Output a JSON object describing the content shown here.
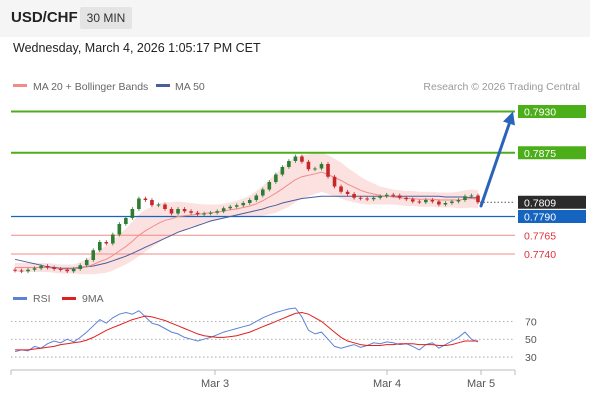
{
  "header": {
    "symbol": "USD/CHF",
    "timeframe": "30 MIN",
    "datetime": "Wednesday, March 4, 2026 1:05:17 PM CET"
  },
  "legend": {
    "ma20_label": "MA 20 + Bollinger Bands",
    "ma50_label": "MA 50",
    "credit": "Research © 2026 Trading Central",
    "rsi_label": "RSI",
    "rsi_ma_label": "9MA"
  },
  "colors": {
    "up_candle": "#2e7d32",
    "down_candle": "#c62828",
    "ma20": "#f28c8c",
    "bollinger_fill": "#fbdcdc",
    "ma50": "#4a5d9c",
    "resistance": "#4caf1a",
    "support": "#f08a8a",
    "pivot": "#1565c0",
    "current_price_tag": "#2b2b2b",
    "arrow": "#2a64b8",
    "rsi": "#5b82d6",
    "rsi_ma": "#e02020"
  },
  "chart_data": [
    {
      "type": "candlestick",
      "title": "USD/CHF",
      "timeframe": "30 MIN",
      "x_tick_labels": [
        "Mar 3",
        "Mar 4",
        "Mar 5"
      ],
      "ylim": [
        0.7708,
        0.7948
      ],
      "price_levels": [
        {
          "value": 0.793,
          "label": "0.7930",
          "kind": "resistance"
        },
        {
          "value": 0.7875,
          "label": "0.7875",
          "kind": "resistance"
        },
        {
          "value": 0.7809,
          "label": "0.7809",
          "kind": "current_price"
        },
        {
          "value": 0.779,
          "label": "0.7790",
          "kind": "pivot"
        },
        {
          "value": 0.7765,
          "label": "0.7765",
          "kind": "support"
        },
        {
          "value": 0.774,
          "label": "0.7740",
          "kind": "support"
        }
      ],
      "projection": {
        "from": 0.7804,
        "to": 0.793,
        "direction": "up"
      },
      "close_path": [
        0.7718,
        0.7717,
        0.7719,
        0.7721,
        0.7724,
        0.7722,
        0.772,
        0.7719,
        0.7717,
        0.772,
        0.7725,
        0.7732,
        0.7745,
        0.7756,
        0.7754,
        0.7766,
        0.778,
        0.7788,
        0.78,
        0.7814,
        0.7812,
        0.7805,
        0.7806,
        0.78,
        0.7794,
        0.78,
        0.7797,
        0.7795,
        0.7793,
        0.7794,
        0.7795,
        0.7797,
        0.7801,
        0.7803,
        0.7805,
        0.7808,
        0.7812,
        0.7818,
        0.7826,
        0.7836,
        0.7846,
        0.7856,
        0.7864,
        0.787,
        0.7863,
        0.7853,
        0.7854,
        0.786,
        0.7843,
        0.783,
        0.7823,
        0.782,
        0.7815,
        0.7814,
        0.7813,
        0.7815,
        0.7817,
        0.7819,
        0.7818,
        0.7815,
        0.7813,
        0.781,
        0.7809,
        0.7812,
        0.781,
        0.7806,
        0.7808,
        0.781,
        0.7812,
        0.7817,
        0.7818,
        0.7809
      ],
      "ma20_path": [
        0.7722,
        0.7722,
        0.7722,
        0.7722,
        0.7722,
        0.7722,
        0.7721,
        0.772,
        0.772,
        0.772,
        0.7721,
        0.7723,
        0.7726,
        0.773,
        0.7733,
        0.7738,
        0.7744,
        0.775,
        0.7757,
        0.7765,
        0.7771,
        0.7776,
        0.7781,
        0.7785,
        0.7787,
        0.779,
        0.7791,
        0.7792,
        0.7793,
        0.7794,
        0.7795,
        0.7796,
        0.7797,
        0.7799,
        0.78,
        0.7802,
        0.7804,
        0.7807,
        0.7811,
        0.7816,
        0.7821,
        0.7827,
        0.7833,
        0.7839,
        0.7843,
        0.7845,
        0.7847,
        0.7849,
        0.7846,
        0.7842,
        0.7838,
        0.7833,
        0.7829,
        0.7825,
        0.7822,
        0.782,
        0.7818,
        0.7817,
        0.7816,
        0.7815,
        0.7814,
        0.7814,
        0.7813,
        0.7813,
        0.7813,
        0.7812,
        0.7812,
        0.7812,
        0.7812,
        0.7813,
        0.7814,
        0.7813
      ],
      "ma50_path": [
        0.7733,
        0.7731,
        0.7729,
        0.7727,
        0.7725,
        0.7723,
        0.7722,
        0.7721,
        0.7721,
        0.7721,
        0.7722,
        0.7723,
        0.7724,
        0.7726,
        0.7728,
        0.7731,
        0.7734,
        0.7737,
        0.7741,
        0.7745,
        0.7749,
        0.7753,
        0.7757,
        0.7761,
        0.7765,
        0.7769,
        0.7772,
        0.7775,
        0.7778,
        0.7781,
        0.7784,
        0.7786,
        0.7788,
        0.779,
        0.7792,
        0.7794,
        0.7796,
        0.7798,
        0.78,
        0.7803,
        0.7805,
        0.7808,
        0.781,
        0.7812,
        0.7814,
        0.7815,
        0.7816,
        0.7817,
        0.7817,
        0.7817,
        0.7817,
        0.7817,
        0.7817,
        0.7817,
        0.7817,
        0.7817,
        0.7817,
        0.7817,
        0.7817,
        0.7817,
        0.7817,
        0.7817,
        0.7817,
        0.7817,
        0.7817,
        0.7817,
        0.7816,
        0.7816,
        0.7816,
        0.7816,
        0.7815,
        0.7815
      ],
      "band_width_path": [
        6,
        6,
        6,
        6,
        6,
        6,
        6,
        6,
        6,
        6,
        8,
        10,
        13,
        16,
        18,
        20,
        22,
        24,
        26,
        28,
        28,
        27,
        26,
        24,
        22,
        20,
        18,
        16,
        14,
        12,
        11,
        10,
        10,
        10,
        11,
        12,
        14,
        17,
        20,
        23,
        26,
        28,
        30,
        30,
        29,
        28,
        27,
        26,
        26,
        25,
        24,
        22,
        20,
        18,
        16,
        14,
        12,
        11,
        10,
        10,
        10,
        10,
        10,
        10,
        10,
        10,
        10,
        10,
        11,
        12,
        12,
        12
      ]
    },
    {
      "type": "line",
      "title": "RSI",
      "series": [
        {
          "name": "RSI"
        },
        {
          "name": "9MA"
        }
      ],
      "y_tick_labels": [
        "70",
        "50",
        "30"
      ],
      "ylim": [
        20,
        85
      ],
      "reference_lines": [
        70,
        50,
        30
      ],
      "rsi_path": [
        36,
        38,
        37,
        42,
        40,
        45,
        48,
        46,
        50,
        47,
        52,
        58,
        65,
        72,
        68,
        74,
        78,
        80,
        78,
        82,
        75,
        68,
        66,
        62,
        58,
        56,
        52,
        50,
        48,
        50,
        52,
        55,
        58,
        60,
        62,
        64,
        66,
        70,
        74,
        77,
        80,
        82,
        84,
        85,
        75,
        60,
        56,
        58,
        50,
        42,
        40,
        42,
        44,
        41,
        43,
        46,
        45,
        47,
        46,
        44,
        45,
        42,
        38,
        44,
        46,
        40,
        44,
        48,
        52,
        58,
        50,
        47
      ],
      "rsi_ma_path": [
        38,
        38,
        38,
        39,
        40,
        41,
        42,
        44,
        45,
        46,
        47,
        49,
        52,
        56,
        60,
        63,
        66,
        69,
        72,
        74,
        76,
        75,
        73,
        71,
        68,
        65,
        62,
        59,
        56,
        54,
        53,
        52,
        52,
        53,
        54,
        56,
        58,
        61,
        64,
        67,
        70,
        73,
        76,
        79,
        80,
        78,
        74,
        70,
        64,
        58,
        52,
        48,
        46,
        44,
        43,
        43,
        43,
        44,
        44,
        45,
        45,
        45,
        44,
        44,
        44,
        43,
        43,
        44,
        46,
        48,
        48,
        48
      ]
    }
  ]
}
